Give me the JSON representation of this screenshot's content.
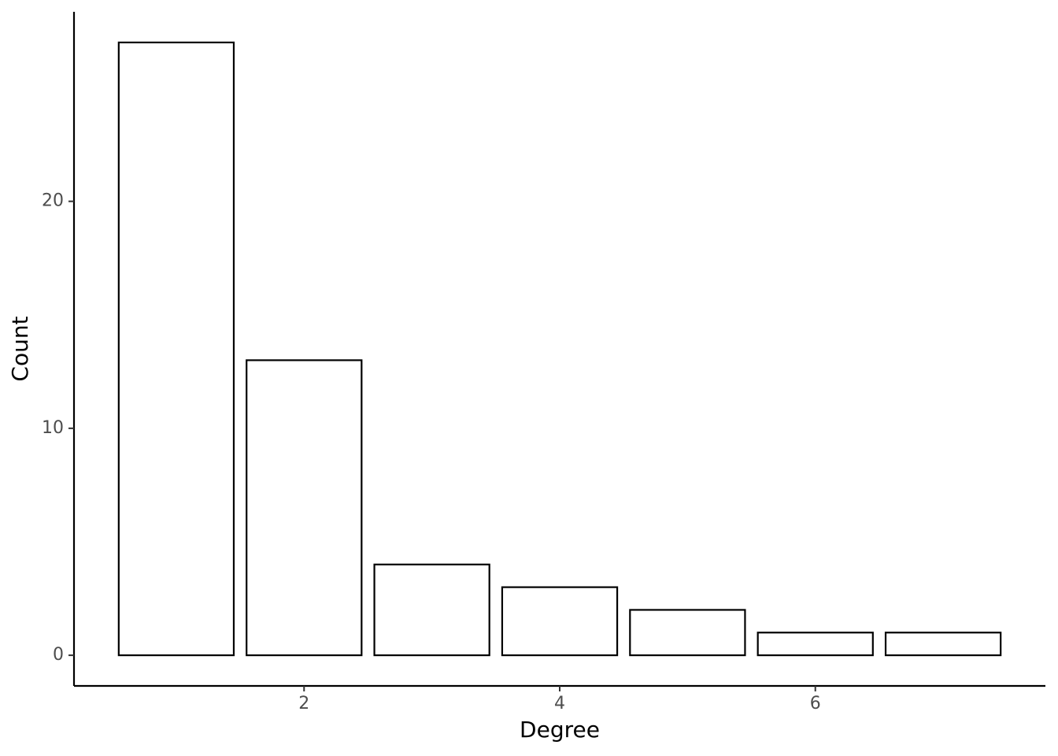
{
  "chart_data": {
    "type": "bar",
    "x_label": "Degree",
    "y_label": "Count",
    "x": [
      1,
      2,
      3,
      4,
      5,
      6,
      7
    ],
    "values": [
      27,
      13,
      4,
      3,
      2,
      1,
      1
    ],
    "fill": "#ffffff",
    "edgecolor": "#000000",
    "xlim": [
      0.2,
      7.8
    ],
    "xticks": [
      2,
      4,
      6
    ],
    "ylim": [
      -1.35,
      28.35
    ],
    "yticks": [
      0,
      10,
      20
    ],
    "grid": false
  }
}
